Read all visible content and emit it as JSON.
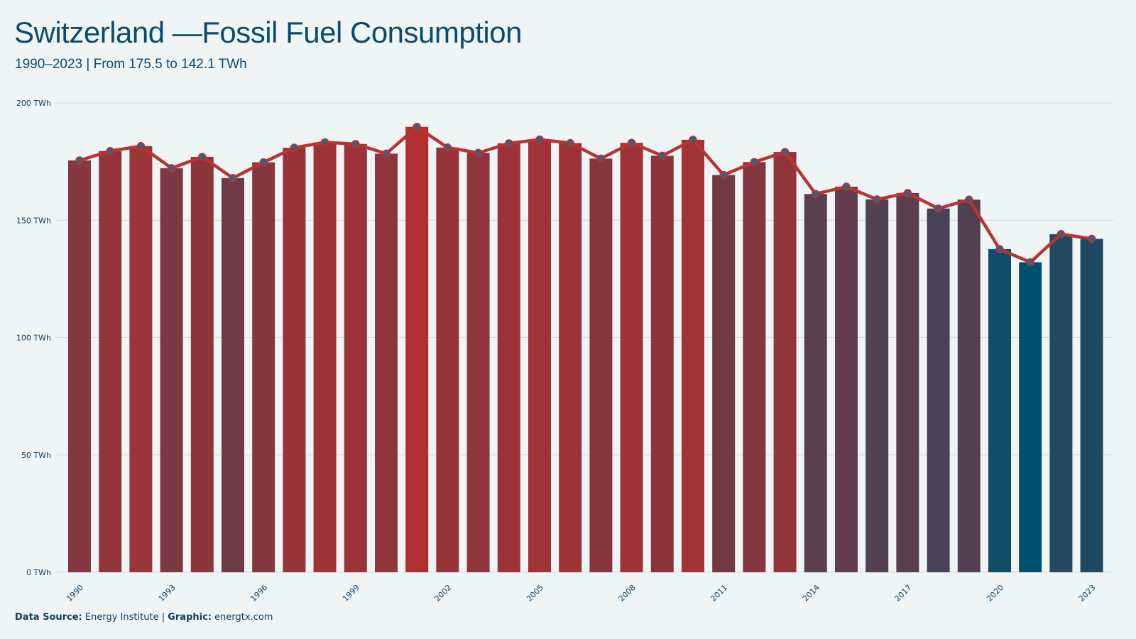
{
  "header": {
    "title": "Switzerland —Fossil Fuel Consumption",
    "subtitle": "1990–2023 | From 175.5 to 142.1 TWh"
  },
  "footer": {
    "source_label": "Data Source:",
    "source_value": "Energy Institute",
    "separator": "|",
    "graphic_label": "Graphic:",
    "graphic_value": "energtx.com"
  },
  "colors": {
    "background": "#eff5f5",
    "high": "#b22f2f",
    "low": "#004f6e",
    "line": "#b83434",
    "marker": "#4a5a75",
    "grid": "#d3dadd",
    "text": "#0e3f5c"
  },
  "chart_data": {
    "type": "bar",
    "overlay": "line",
    "x": [
      1990,
      1991,
      1992,
      1993,
      1994,
      1995,
      1996,
      1997,
      1998,
      1999,
      2000,
      2001,
      2002,
      2003,
      2004,
      2005,
      2006,
      2007,
      2008,
      2009,
      2010,
      2011,
      2012,
      2013,
      2014,
      2015,
      2016,
      2017,
      2018,
      2019,
      2020,
      2021,
      2022,
      2023
    ],
    "values": [
      175.5,
      179.5,
      181.6,
      172.2,
      177.0,
      168.0,
      174.7,
      180.9,
      183.2,
      182.5,
      178.4,
      189.8,
      181.0,
      178.7,
      182.8,
      184.4,
      182.9,
      176.3,
      183.0,
      177.5,
      184.3,
      169.3,
      174.8,
      179.1,
      161.2,
      164.3,
      158.9,
      161.6,
      155.0,
      158.8,
      137.7,
      132.1,
      144.1,
      142.1
    ],
    "unit": "TWh",
    "ylim": [
      0,
      200
    ],
    "yticks": [
      0,
      50,
      100,
      150,
      200
    ],
    "ytick_labels": [
      "0 TWh",
      "50 TWh",
      "100 TWh",
      "150 TWh",
      "200 TWh"
    ],
    "xtick_labels": [
      "1990",
      "1993",
      "1996",
      "1999",
      "2002",
      "2005",
      "2008",
      "2011",
      "2014",
      "2017",
      "2020",
      "2023"
    ],
    "grid": true
  }
}
